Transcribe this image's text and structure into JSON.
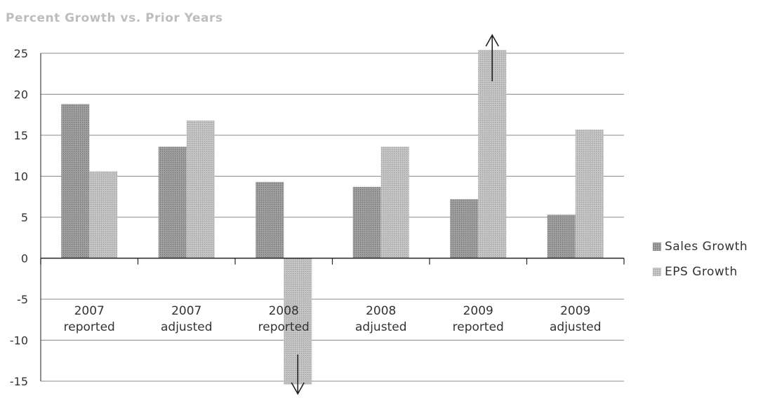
{
  "chart_data": {
    "type": "bar",
    "title": "Percent Growth vs. Prior Years",
    "categories": [
      [
        "2007",
        "reported"
      ],
      [
        "2007",
        "adjusted"
      ],
      [
        "2008",
        "reported"
      ],
      [
        "2008",
        "adjusted"
      ],
      [
        "2009",
        "reported"
      ],
      [
        "2009",
        "adjusted"
      ]
    ],
    "series": [
      {
        "name": "Sales Growth",
        "values": [
          18.8,
          13.6,
          9.3,
          8.7,
          7.2,
          5.3
        ],
        "color": "#8c8c8c"
      },
      {
        "name": "EPS Growth",
        "values": [
          10.6,
          16.8,
          -15.4,
          13.6,
          25.4,
          15.7
        ],
        "color": "#b3b3b3"
      }
    ],
    "yticks": [
      25,
      20,
      15,
      10,
      5,
      0,
      -5,
      -10,
      -15
    ],
    "ylim": [
      -15,
      25
    ],
    "grid": true,
    "legend_position": "right",
    "annotations": [
      {
        "type": "arrow-up",
        "category_index": 4,
        "series": "EPS Growth"
      },
      {
        "type": "arrow-down",
        "category_index": 2,
        "series": "EPS Growth"
      }
    ]
  }
}
